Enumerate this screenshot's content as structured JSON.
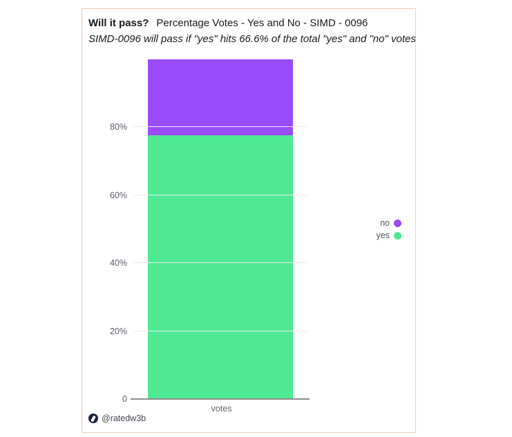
{
  "header": {
    "title_bold": "Will it pass?",
    "title_rest": "Percentage Votes - Yes and No - SIMD - 0096",
    "subtitle": "SIMD-0096 will pass if \"yes\" hits 66.6% of the total \"yes\" and \"no\" votes"
  },
  "chart_data": {
    "type": "bar",
    "stacked": true,
    "title": "Will it pass?  Percentage Votes - Yes and No - SIMD - 0096",
    "subtitle": "SIMD-0096 will pass if \"yes\" hits 66.6% of the total \"yes\" and \"no\" votes",
    "categories": [
      "votes"
    ],
    "series": [
      {
        "name": "yes",
        "values": [
          77.6
        ],
        "color": "#50e993"
      },
      {
        "name": "no",
        "values": [
          22.4
        ],
        "color": "#9a4bfb"
      }
    ],
    "xlabel": "",
    "ylabel": "",
    "ylim": [
      0,
      100
    ],
    "yticks": [
      0,
      20,
      40,
      60,
      80
    ],
    "ytick_labels": [
      "0",
      "20%",
      "40%",
      "60%",
      "80%"
    ],
    "grid": true,
    "legend_position": "right",
    "pass_threshold_pct": 66.6
  },
  "legend": {
    "items": [
      {
        "label": "no",
        "color": "#9a4bfb"
      },
      {
        "label": "yes",
        "color": "#50e993"
      }
    ]
  },
  "footer": {
    "handle": "@ratedw3b",
    "logo": "ratedw3b-logo"
  },
  "colors": {
    "yes_green": "#50e993",
    "no_purple": "#9a4bfb",
    "card_border": "#f5c9b3",
    "axis_line": "#8c8c8c",
    "gridline": "#ebebee",
    "logo_bg": "#1d2440"
  }
}
